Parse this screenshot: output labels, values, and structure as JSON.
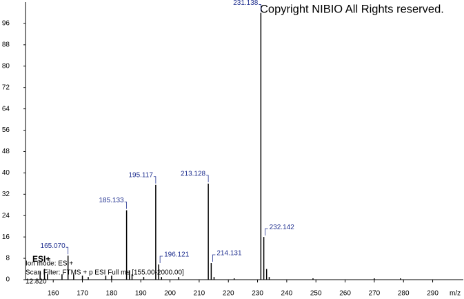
{
  "chart_data": {
    "type": "stem",
    "title": "Copyright NIBIO All Rights reserved.",
    "x_label": "m/z",
    "annotations": [
      "ESI+",
      "Ion mode: ESI+",
      "Scan Filter: FTMS + p ESI Full ms [155.00-2000.00]",
      "12.820"
    ],
    "x": [
      155.5,
      157,
      158,
      163,
      165.07,
      167,
      170,
      172,
      178,
      180,
      185.133,
      186.1,
      187,
      191,
      195.117,
      196.121,
      197.1,
      203,
      213.128,
      214.131,
      215.1,
      222,
      231.138,
      232.142,
      233.1,
      234,
      249,
      270,
      279
    ],
    "values": [
      3,
      4,
      2,
      2,
      9,
      2,
      1.5,
      1,
      1.5,
      1.5,
      26,
      3.5,
      2,
      1,
      35.5,
      5.7,
      1,
      1,
      36,
      6.2,
      1,
      0.5,
      100,
      16,
      4,
      1,
      0.5,
      0.5,
      0.5
    ],
    "labels": [
      null,
      null,
      null,
      null,
      "165.070",
      null,
      null,
      null,
      null,
      null,
      "185.133",
      null,
      null,
      null,
      "195.117",
      "196.121",
      null,
      null,
      "213.128",
      "214.131",
      null,
      null,
      "231.138",
      "232.142",
      null,
      null,
      null,
      null,
      null
    ],
    "color": "#000000",
    "label_color": "#1f2f8f",
    "xlim": [
      150.5,
      300.5
    ],
    "ylim": [
      0,
      104
    ],
    "xticks": [
      160,
      170,
      180,
      190,
      200,
      210,
      220,
      230,
      240,
      250,
      260,
      270,
      280,
      290
    ],
    "yticks": [
      0,
      8,
      16,
      24,
      32,
      40,
      48,
      56,
      64,
      72,
      80,
      88,
      96
    ]
  }
}
